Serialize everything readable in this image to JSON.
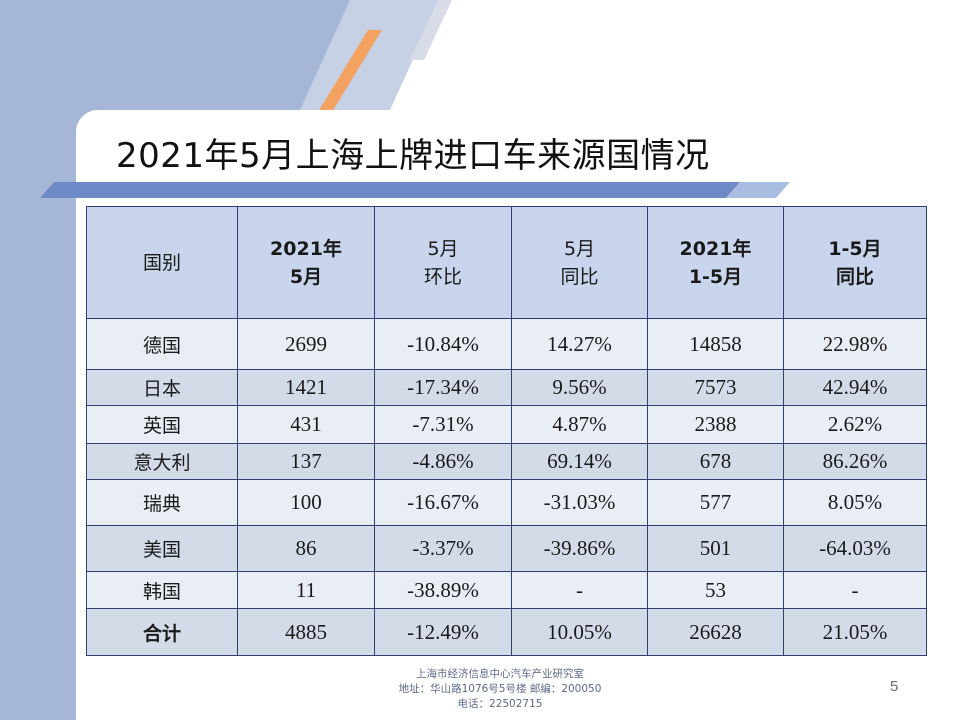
{
  "title": "2021年5月上海上牌进口车来源国情况",
  "colors": {
    "background_left": "#a6b6d6",
    "accent_orange": "#f4a261",
    "header_fill": "#c9d5ec",
    "row_light": "#e9edf4",
    "row_dark": "#d3dbe9",
    "border": "#2f3f73"
  },
  "table": {
    "headers": [
      [
        "国别"
      ],
      [
        "2021年",
        "5月"
      ],
      [
        "5月",
        "环比"
      ],
      [
        "5月",
        "同比"
      ],
      [
        "2021年",
        "1-5月"
      ],
      [
        "1-5月",
        "同比"
      ]
    ],
    "rows": [
      [
        "德国",
        "2699",
        "-10.84%",
        "14.27%",
        "14858",
        "22.98%"
      ],
      [
        "日本",
        "1421",
        "-17.34%",
        "9.56%",
        "7573",
        "42.94%"
      ],
      [
        "英国",
        "431",
        "-7.31%",
        "4.87%",
        "2388",
        "2.62%"
      ],
      [
        "意大利",
        "137",
        "-4.86%",
        "69.14%",
        "678",
        "86.26%"
      ],
      [
        "瑞典",
        "100",
        "-16.67%",
        "-31.03%",
        "577",
        "8.05%"
      ],
      [
        "美国",
        "86",
        "-3.37%",
        "-39.86%",
        "501",
        "-64.03%"
      ],
      [
        "韩国",
        "11",
        "-38.89%",
        "-",
        "53",
        "-"
      ],
      [
        "合计",
        "4885",
        "-12.49%",
        "10.05%",
        "26628",
        "21.05%"
      ]
    ]
  },
  "footer": {
    "line1": "上海市经济信息中心汽车产业研究室",
    "line2": "地址：华山路1076号5号楼    邮编：200050",
    "line3": "电话：22502715"
  },
  "page_number": "5"
}
